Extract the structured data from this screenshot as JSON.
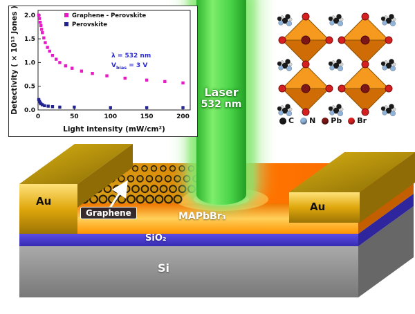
{
  "chart_data": {
    "type": "scatter",
    "title": "",
    "xlabel": "Light intensity (mW/cm²)",
    "ylabel": "Detectivity ( × 10¹³ Jones )",
    "xlim": [
      0,
      210
    ],
    "ylim": [
      0,
      2.1
    ],
    "xticks": [
      0,
      50,
      100,
      150,
      200
    ],
    "yticks": [
      0.0,
      0.5,
      1.0,
      1.5,
      2.0
    ],
    "grid": false,
    "legend_position": "top-left-inside",
    "series": [
      {
        "name": "Graphene - Perovskite",
        "color": "#e61ac6",
        "marker": "square",
        "x": [
          1,
          2,
          3,
          4,
          5,
          6,
          8,
          10,
          13,
          16,
          20,
          25,
          30,
          38,
          47,
          60,
          75,
          95,
          120,
          150,
          175,
          200
        ],
        "y": [
          2.0,
          1.93,
          1.85,
          1.78,
          1.7,
          1.63,
          1.52,
          1.42,
          1.32,
          1.24,
          1.15,
          1.07,
          1.0,
          0.93,
          0.88,
          0.82,
          0.77,
          0.72,
          0.67,
          0.63,
          0.6,
          0.57
        ]
      },
      {
        "name": "Perovskite",
        "color": "#23238f",
        "marker": "square",
        "x": [
          1,
          2,
          3,
          4,
          6,
          9,
          14,
          20,
          30,
          50,
          100,
          150,
          200
        ],
        "y": [
          0.22,
          0.18,
          0.15,
          0.13,
          0.11,
          0.09,
          0.08,
          0.07,
          0.06,
          0.06,
          0.05,
          0.05,
          0.05
        ]
      }
    ],
    "annotations": [
      {
        "text": "λ = 532 nm"
      },
      {
        "pre": "V",
        "sub": "bias",
        "post": " = 3 V"
      }
    ]
  },
  "laser": {
    "line1": "Laser",
    "line2": "532 nm",
    "color": "#3ecf3e"
  },
  "crystal": {
    "atoms": [
      {
        "label": "C",
        "color": "#1a1a1a"
      },
      {
        "label": "N",
        "color": "#8fb3d9"
      },
      {
        "label": "Pb",
        "color": "#7d1616"
      },
      {
        "label": "Br",
        "color": "#d42020"
      }
    ]
  },
  "device": {
    "labels": {
      "au_left": "Au",
      "au_right": "Au",
      "graphene": "Graphene",
      "mapbbr3": "MAPbBr₃",
      "sio2": "SiO₂",
      "si": "Si"
    },
    "colors": {
      "au": "#d4a017",
      "mapbbr3": "#ff7a00",
      "sio2": "#4a3ed2",
      "si": "#909090"
    }
  }
}
